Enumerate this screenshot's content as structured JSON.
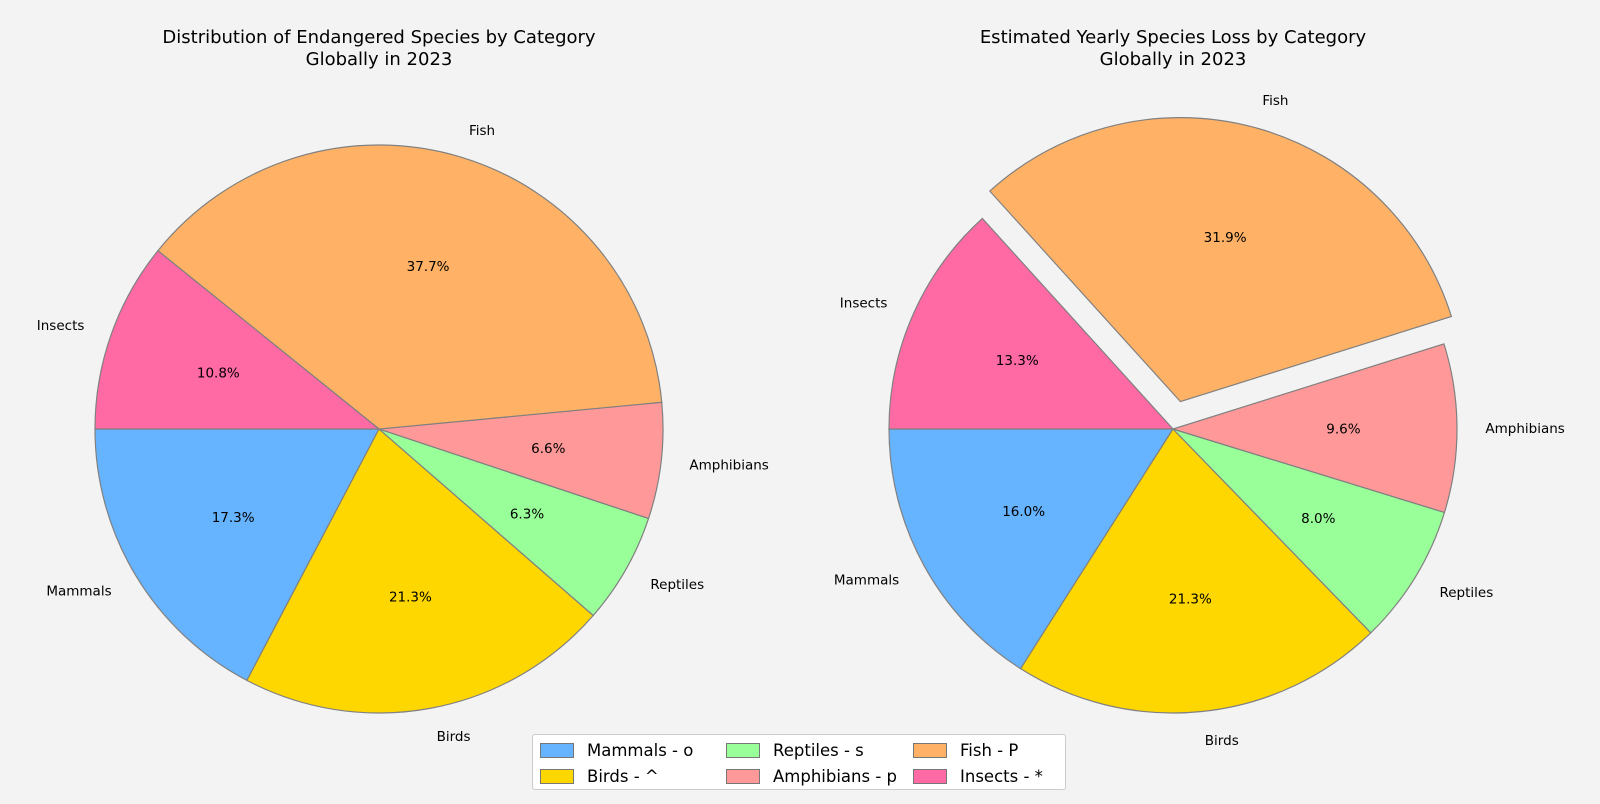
{
  "chart_data": [
    {
      "type": "pie",
      "title_line1": "Distribution of Endangered Species by Category",
      "title_line2": "Globally in 2023",
      "categories": [
        "Mammals",
        "Birds",
        "Reptiles",
        "Amphibians",
        "Fish",
        "Insects"
      ],
      "values": [
        17.3,
        21.3,
        6.3,
        6.6,
        37.7,
        10.8
      ],
      "value_labels": [
        "17.3%",
        "21.3%",
        "6.3%",
        "6.6%",
        "37.7%",
        "10.8%"
      ],
      "explode": [
        0,
        0,
        0,
        0,
        0,
        0
      ],
      "start_angle_deg": 180,
      "direction": "counterclockwise"
    },
    {
      "type": "pie",
      "title_line1": "Estimated Yearly Species Loss by Category",
      "title_line2": "Globally in 2023",
      "categories": [
        "Mammals",
        "Birds",
        "Reptiles",
        "Amphibians",
        "Fish",
        "Insects"
      ],
      "values": [
        16.0,
        21.3,
        8.0,
        9.6,
        31.9,
        13.3
      ],
      "value_labels": [
        "16.0%",
        "21.3%",
        "8.0%",
        "9.6%",
        "31.9%",
        "13.3%"
      ],
      "explode": [
        0,
        0,
        0,
        0,
        0.1,
        0
      ],
      "start_angle_deg": 180,
      "direction": "counterclockwise"
    }
  ],
  "colors": [
    "#66b3ff",
    "#ffd700",
    "#99ff99",
    "#ff9999",
    "#ffb266",
    "#ff69a4"
  ],
  "edge_color": "#808080",
  "legend": {
    "placement": "bottom-center",
    "items": [
      {
        "label": "Mammals - o",
        "color": "#66b3ff"
      },
      {
        "label": "Birds - ^",
        "color": "#ffd700"
      },
      {
        "label": "Reptiles - s",
        "color": "#99ff99"
      },
      {
        "label": "Amphibians - p",
        "color": "#ff9999"
      },
      {
        "label": "Fish - P",
        "color": "#ffb266"
      },
      {
        "label": "Insects - *",
        "color": "#ff69a4"
      }
    ]
  }
}
